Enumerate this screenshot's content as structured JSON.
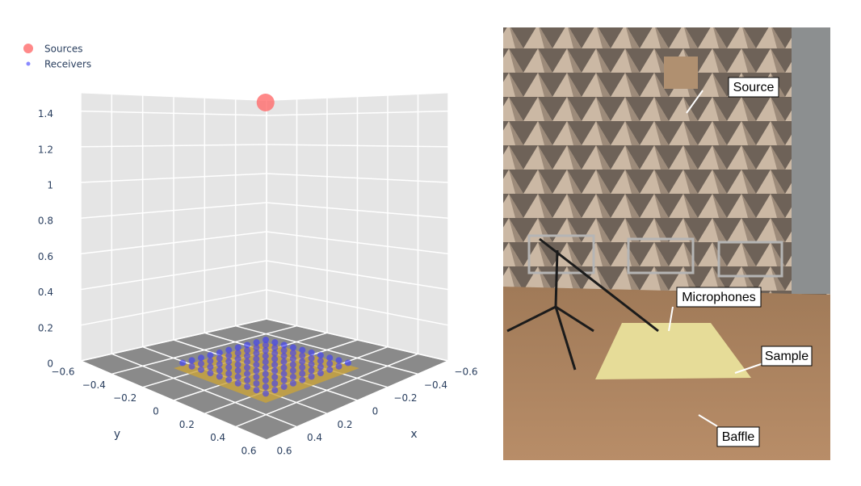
{
  "chart_data": {
    "type": "scatter3d",
    "series": [
      {
        "name": "Sources",
        "color": "#ff6b6b",
        "x": [
          0
        ],
        "y": [
          0
        ],
        "z": [
          1.5
        ]
      },
      {
        "name": "Receivers",
        "color": "#3a3aff",
        "x": [
          -0.27,
          -0.21,
          -0.15,
          -0.09,
          -0.03,
          0.03,
          0.09,
          0.15,
          0.21,
          0.27,
          -0.27,
          -0.21,
          -0.15,
          -0.09,
          -0.03,
          0.03,
          0.09,
          0.15,
          0.21,
          0.27,
          -0.27,
          -0.21,
          -0.15,
          -0.09,
          -0.03,
          0.03,
          0.09,
          0.15,
          0.21,
          0.27,
          -0.27,
          -0.21,
          -0.15,
          -0.09,
          -0.03,
          0.03,
          0.09,
          0.15,
          0.21,
          0.27,
          -0.27,
          -0.21,
          -0.15,
          -0.09,
          -0.03,
          0.03,
          0.09,
          0.15,
          0.21,
          0.27,
          -0.27,
          -0.21,
          -0.15,
          -0.09,
          -0.03,
          0.03,
          0.09,
          0.15,
          0.21,
          0.27,
          -0.27,
          -0.21,
          -0.15,
          -0.09,
          -0.03,
          0.03,
          0.09,
          0.15,
          0.21,
          0.27,
          -0.27,
          -0.21,
          -0.15,
          -0.09,
          -0.03,
          0.03,
          0.09,
          0.15,
          0.21,
          0.27,
          -0.27,
          -0.21,
          -0.15,
          -0.09,
          -0.03,
          0.03,
          0.09,
          0.15,
          0.21,
          0.27,
          -0.27,
          -0.21,
          -0.15,
          -0.09,
          -0.03,
          0.03,
          0.09,
          0.15,
          0.21,
          0.27
        ],
        "y": [
          -0.27,
          -0.27,
          -0.27,
          -0.27,
          -0.27,
          -0.27,
          -0.27,
          -0.27,
          -0.27,
          -0.27,
          -0.21,
          -0.21,
          -0.21,
          -0.21,
          -0.21,
          -0.21,
          -0.21,
          -0.21,
          -0.21,
          -0.21,
          -0.15,
          -0.15,
          -0.15,
          -0.15,
          -0.15,
          -0.15,
          -0.15,
          -0.15,
          -0.15,
          -0.15,
          -0.09,
          -0.09,
          -0.09,
          -0.09,
          -0.09,
          -0.09,
          -0.09,
          -0.09,
          -0.09,
          -0.09,
          -0.03,
          -0.03,
          -0.03,
          -0.03,
          -0.03,
          -0.03,
          -0.03,
          -0.03,
          -0.03,
          -0.03,
          0.03,
          0.03,
          0.03,
          0.03,
          0.03,
          0.03,
          0.03,
          0.03,
          0.03,
          0.03,
          0.09,
          0.09,
          0.09,
          0.09,
          0.09,
          0.09,
          0.09,
          0.09,
          0.09,
          0.09,
          0.15,
          0.15,
          0.15,
          0.15,
          0.15,
          0.15,
          0.15,
          0.15,
          0.15,
          0.15,
          0.21,
          0.21,
          0.21,
          0.21,
          0.21,
          0.21,
          0.21,
          0.21,
          0.21,
          0.21,
          0.27,
          0.27,
          0.27,
          0.27,
          0.27,
          0.27,
          0.27,
          0.27,
          0.27,
          0.27
        ],
        "z": [
          0.03,
          0.03,
          0.03,
          0.03,
          0.03,
          0.03,
          0.03,
          0.03,
          0.03,
          0.03,
          0.03,
          0.03,
          0.03,
          0.03,
          0.03,
          0.03,
          0.03,
          0.03,
          0.03,
          0.03,
          0.03,
          0.03,
          0.03,
          0.03,
          0.03,
          0.03,
          0.03,
          0.03,
          0.03,
          0.03,
          0.03,
          0.03,
          0.03,
          0.03,
          0.03,
          0.03,
          0.03,
          0.03,
          0.03,
          0.03,
          0.03,
          0.03,
          0.03,
          0.03,
          0.03,
          0.03,
          0.03,
          0.03,
          0.03,
          0.03,
          0.03,
          0.03,
          0.03,
          0.03,
          0.03,
          0.03,
          0.03,
          0.03,
          0.03,
          0.03,
          0.03,
          0.03,
          0.03,
          0.03,
          0.03,
          0.03,
          0.03,
          0.03,
          0.03,
          0.03,
          0.03,
          0.03,
          0.03,
          0.03,
          0.03,
          0.03,
          0.03,
          0.03,
          0.03,
          0.03,
          0.03,
          0.03,
          0.03,
          0.03,
          0.03,
          0.03,
          0.03,
          0.03,
          0.03,
          0.03,
          0.03,
          0.03,
          0.03,
          0.03,
          0.03,
          0.03,
          0.03,
          0.03,
          0.03,
          0.03
        ]
      }
    ],
    "xlabel": "x",
    "ylabel": "y",
    "xlim": [
      -0.6,
      0.6
    ],
    "ylim": [
      -0.6,
      0.6
    ],
    "zlim": [
      0,
      1.5
    ],
    "xticks": [
      {
        "value": -0.6,
        "label": "−0.6"
      },
      {
        "value": -0.4,
        "label": "−0.4"
      },
      {
        "value": -0.2,
        "label": "−0.2"
      },
      0,
      0.2,
      0.4,
      0.6
    ],
    "yticks": [
      {
        "value": -0.6,
        "label": "−0.6"
      },
      {
        "value": -0.4,
        "label": "−0.4"
      },
      {
        "value": -0.2,
        "label": "−0.2"
      },
      0,
      0.2,
      0.4,
      0.6
    ],
    "zticks": [
      0,
      0.2,
      0.4,
      0.6,
      0.8,
      1,
      1.2,
      1.4
    ],
    "grid": true,
    "legend": "upper left"
  },
  "photo": {
    "labels": [
      "Source",
      "Microphones",
      "Sample",
      "Baffle"
    ]
  }
}
